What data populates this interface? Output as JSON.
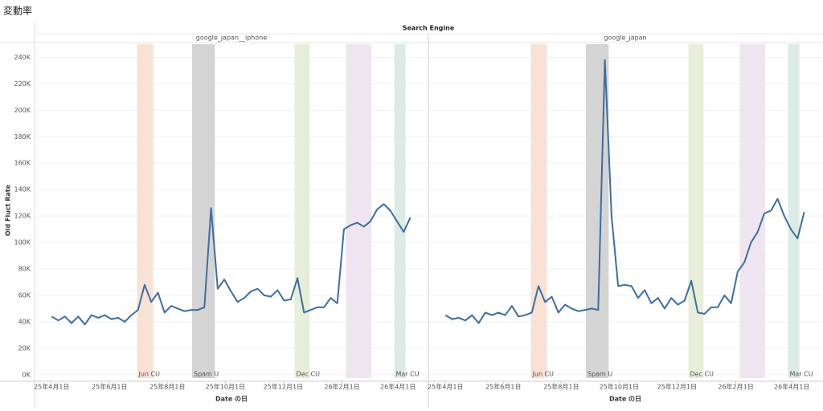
{
  "chart_data": {
    "type": "line",
    "title": "変動率",
    "header": "Search Engine",
    "y_label": "Old Fluct Rate",
    "x_label": "Date の日",
    "grid": true,
    "ylim": [
      -5000,
      250000
    ],
    "yticks": [
      {
        "value": 0,
        "label": "0K"
      },
      {
        "value": 20000,
        "label": "20K"
      },
      {
        "value": 40000,
        "label": "40K"
      },
      {
        "value": 60000,
        "label": "60K"
      },
      {
        "value": 80000,
        "label": "80K"
      },
      {
        "value": 100000,
        "label": "100K"
      },
      {
        "value": 120000,
        "label": "120K"
      },
      {
        "value": 140000,
        "label": "140K"
      },
      {
        "value": 160000,
        "label": "160K"
      },
      {
        "value": 180000,
        "label": "180K"
      },
      {
        "value": 200000,
        "label": "200K"
      },
      {
        "value": 220000,
        "label": "220K"
      },
      {
        "value": 240000,
        "label": "240K"
      }
    ],
    "xlim": [
      "2025-03-14",
      "2026-05-03"
    ],
    "xticks": [
      {
        "value": "2025-04-01",
        "label": "25年4月1日"
      },
      {
        "value": "2025-06-01",
        "label": "25年6月1日"
      },
      {
        "value": "2025-08-01",
        "label": "25年8月1日"
      },
      {
        "value": "2025-10-01",
        "label": "25年10月1日"
      },
      {
        "value": "2025-12-01",
        "label": "25年12月1日"
      },
      {
        "value": "2026-02-01",
        "label": "26年2月1日"
      },
      {
        "value": "2026-04-01",
        "label": "26年4月1日"
      }
    ],
    "bands": [
      {
        "label": "Jun CU",
        "start": "2025-06-30",
        "end": "2025-07-17",
        "color": "#f9e1d6"
      },
      {
        "label": "Spam U",
        "start": "2025-08-27",
        "end": "2025-09-20",
        "color": "#d4d4d4"
      },
      {
        "label": "Dec CU",
        "start": "2025-12-13",
        "end": "2025-12-29",
        "color": "#e7eed9"
      },
      {
        "start": "2026-02-05",
        "end": "2026-03-04",
        "color": "#efe5f0"
      },
      {
        "label": "Mar CU",
        "start": "2026-03-28",
        "end": "2026-04-09",
        "color": "#dcebe5"
      }
    ],
    "x": [
      "2025-04-01",
      "2025-04-08",
      "2025-04-15",
      "2025-04-22",
      "2025-04-29",
      "2025-05-06",
      "2025-05-13",
      "2025-05-20",
      "2025-05-27",
      "2025-06-03",
      "2025-06-10",
      "2025-06-17",
      "2025-06-24",
      "2025-07-01",
      "2025-07-08",
      "2025-07-15",
      "2025-07-22",
      "2025-07-29",
      "2025-08-05",
      "2025-08-12",
      "2025-08-19",
      "2025-08-26",
      "2025-09-02",
      "2025-09-09",
      "2025-09-16",
      "2025-09-23",
      "2025-09-30",
      "2025-10-07",
      "2025-10-14",
      "2025-10-21",
      "2025-10-28",
      "2025-11-04",
      "2025-11-11",
      "2025-11-18",
      "2025-11-25",
      "2025-12-02",
      "2025-12-09",
      "2025-12-16",
      "2025-12-23",
      "2025-12-30",
      "2026-01-06",
      "2026-01-13",
      "2026-01-20",
      "2026-01-27",
      "2026-02-03",
      "2026-02-10",
      "2026-02-17",
      "2026-02-24",
      "2026-03-03",
      "2026-03-10",
      "2026-03-17",
      "2026-03-24",
      "2026-03-31",
      "2026-04-07",
      "2026-04-14"
    ],
    "series": [
      {
        "name": "google_japan__iphone",
        "color": "#3e6e9f",
        "values": [
          44000,
          41000,
          44000,
          39000,
          44000,
          38000,
          45000,
          43000,
          45000,
          42000,
          43000,
          40000,
          45000,
          49000,
          68000,
          55000,
          62000,
          47000,
          52000,
          50000,
          48000,
          49000,
          49000,
          51000,
          126000,
          65000,
          72000,
          63000,
          55000,
          58000,
          63000,
          65000,
          60000,
          59000,
          64000,
          56000,
          57000,
          73000,
          47000,
          49000,
          51000,
          51000,
          58000,
          54000,
          110000,
          113000,
          115000,
          112000,
          116000,
          125000,
          129000,
          124000,
          116000,
          108000,
          119000
        ]
      },
      {
        "name": "google_japan",
        "color": "#3e6e9f",
        "values": [
          45000,
          42000,
          43000,
          41000,
          45000,
          39000,
          47000,
          45000,
          47000,
          45000,
          52000,
          44000,
          45000,
          47000,
          67000,
          55000,
          59000,
          47000,
          53000,
          50000,
          48000,
          49000,
          50000,
          49000,
          238000,
          120000,
          67000,
          68000,
          67000,
          58000,
          64000,
          54000,
          58000,
          50000,
          58000,
          53000,
          56000,
          71000,
          47000,
          46000,
          51000,
          51000,
          60000,
          54000,
          78000,
          85000,
          100000,
          108000,
          122000,
          124000,
          133000,
          120000,
          110000,
          103000,
          123000
        ]
      }
    ]
  }
}
